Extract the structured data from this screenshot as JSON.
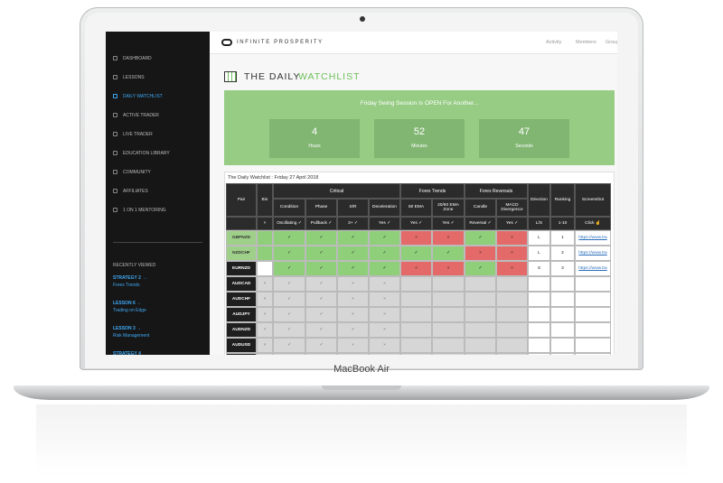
{
  "device_label": "MacBook Air",
  "sidebar": {
    "menu": [
      "DASHBOARD",
      "LESSONS",
      "DAILY WATCHLIST",
      "ACTIVE TRADER",
      "LIVE TRADER",
      "EDUCATION LIBRARY",
      "COMMUNITY",
      "AFFILIATES",
      "1 ON 1 MENTORING"
    ],
    "active": 2,
    "recent_title": "RECENTLY VIEWED",
    "recent": [
      {
        "title": "STRATEGY 2 →",
        "subtitle": "Forex Trends"
      },
      {
        "title": "LESSON 6 →",
        "subtitle": "Trading on Edge"
      },
      {
        "title": "LESSON 3 →",
        "subtitle": "Risk Management"
      },
      {
        "title": "STRATEGY 4"
      }
    ]
  },
  "header": {
    "brand": "INFINITE PROSPERITY",
    "nav": [
      "Activity",
      "Members",
      "Groups"
    ]
  },
  "page_title": {
    "main": "THE DAILY",
    "accent": "WATCHLIST"
  },
  "banner": {
    "message": "Friday Swing Session Is OPEN For Another...",
    "countdown": [
      {
        "value": "4",
        "unit": "Hours"
      },
      {
        "value": "52",
        "unit": "Minutes"
      },
      {
        "value": "47",
        "unit": "Seconds"
      }
    ]
  },
  "table": {
    "caption": "The Daily Watchlist : Friday 27 April 2018",
    "groups": [
      "Critical",
      "Forex Trends",
      "Forex Reversals"
    ],
    "columns": [
      {
        "label": "Pair"
      },
      {
        "label": "Bin",
        "note": "×"
      },
      {
        "label": "Condition",
        "note": "Oscillating ✓"
      },
      {
        "label": "Phase",
        "note": "Pullback ✓"
      },
      {
        "label": "S/R",
        "note": "3+ ✓"
      },
      {
        "label": "Deceleration",
        "note": "Yes ✓"
      },
      {
        "label": "50 EMA",
        "note": "Yes ✓"
      },
      {
        "label": "20/50 EMA Zone",
        "note": "Yes ✓"
      },
      {
        "label": "Candle",
        "note": "Reversal ✓"
      },
      {
        "label": "MACD Divergence",
        "note": "Yes ✓"
      },
      {
        "label": "Direction",
        "note": "L/S"
      },
      {
        "label": "Ranking",
        "note": "1-10"
      },
      {
        "label": "Screenshot",
        "note": "Click ☝"
      }
    ],
    "rows": [
      {
        "pair": "GBPNZD",
        "pair_style": "green",
        "cells": [
          null,
          "✓",
          "✓",
          "✓",
          "✓",
          "×",
          "×",
          "✓",
          "×",
          "L",
          "1",
          "https://www.tra"
        ],
        "fills": [
          "g",
          "g",
          "g",
          "g",
          "g",
          "r",
          "r",
          "g",
          "r",
          "w",
          "w",
          "w"
        ]
      },
      {
        "pair": "NZDCHF",
        "pair_style": "green",
        "cells": [
          null,
          "✓",
          "✓",
          "✓",
          "✓",
          "✓",
          "✓",
          "×",
          "×",
          "L",
          "2",
          "https://www.tra"
        ],
        "fills": [
          "g",
          "g",
          "g",
          "g",
          "g",
          "g",
          "g",
          "r",
          "r",
          "w",
          "w",
          "w"
        ]
      },
      {
        "pair": "EURNZD",
        "pair_style": "dark",
        "cells": [
          null,
          "✓",
          "✓",
          "✓",
          "✓",
          "×",
          "×",
          "✓",
          "×",
          "S",
          "3",
          "https://www.tra"
        ],
        "fills": [
          "w",
          "g",
          "g",
          "g",
          "g",
          "r",
          "r",
          "g",
          "r",
          "w",
          "w",
          "w"
        ]
      },
      {
        "pair": "AUDCAD",
        "pair_style": "dark",
        "cells": [
          "×",
          "✓",
          "✓",
          "×",
          "×",
          null,
          null,
          null,
          null,
          null,
          null,
          null
        ],
        "fills": [
          "n",
          "n",
          "n",
          "n",
          "n",
          "n",
          "n",
          "n",
          "n",
          "w",
          "w",
          "w"
        ]
      },
      {
        "pair": "AUDCHF",
        "pair_style": "dark",
        "cells": [
          "×",
          "✓",
          "✓",
          "×",
          "×",
          null,
          null,
          null,
          null,
          null,
          null,
          null
        ],
        "fills": [
          "n",
          "n",
          "n",
          "n",
          "n",
          "n",
          "n",
          "n",
          "n",
          "w",
          "w",
          "w"
        ]
      },
      {
        "pair": "AUDJPY",
        "pair_style": "dark",
        "cells": [
          "×",
          "✓",
          "✓",
          "×",
          "×",
          null,
          null,
          null,
          null,
          null,
          null,
          null
        ],
        "fills": [
          "n",
          "n",
          "n",
          "n",
          "n",
          "n",
          "n",
          "n",
          "n",
          "w",
          "w",
          "w"
        ]
      },
      {
        "pair": "AUDNZD",
        "pair_style": "dark",
        "cells": [
          "×",
          "✓",
          "✓",
          "×",
          "×",
          null,
          null,
          null,
          null,
          null,
          null,
          null
        ],
        "fills": [
          "n",
          "n",
          "n",
          "n",
          "n",
          "n",
          "n",
          "n",
          "n",
          "w",
          "w",
          "w"
        ]
      },
      {
        "pair": "AUDUSD",
        "pair_style": "dark",
        "cells": [
          "×",
          "✓",
          "✓",
          "×",
          "×",
          null,
          null,
          null,
          null,
          null,
          null,
          null
        ],
        "fills": [
          "n",
          "n",
          "n",
          "n",
          "n",
          "n",
          "n",
          "n",
          "n",
          "w",
          "w",
          "w"
        ]
      },
      {
        "pair": "CADCHF",
        "pair_style": "dark",
        "cells": [
          "×",
          "✓",
          "✓",
          "×",
          "×",
          null,
          null,
          null,
          null,
          null,
          null,
          null
        ],
        "fills": [
          "n",
          "n",
          "n",
          "n",
          "n",
          "n",
          "n",
          "n",
          "n",
          "w",
          "w",
          "w"
        ]
      }
    ]
  }
}
